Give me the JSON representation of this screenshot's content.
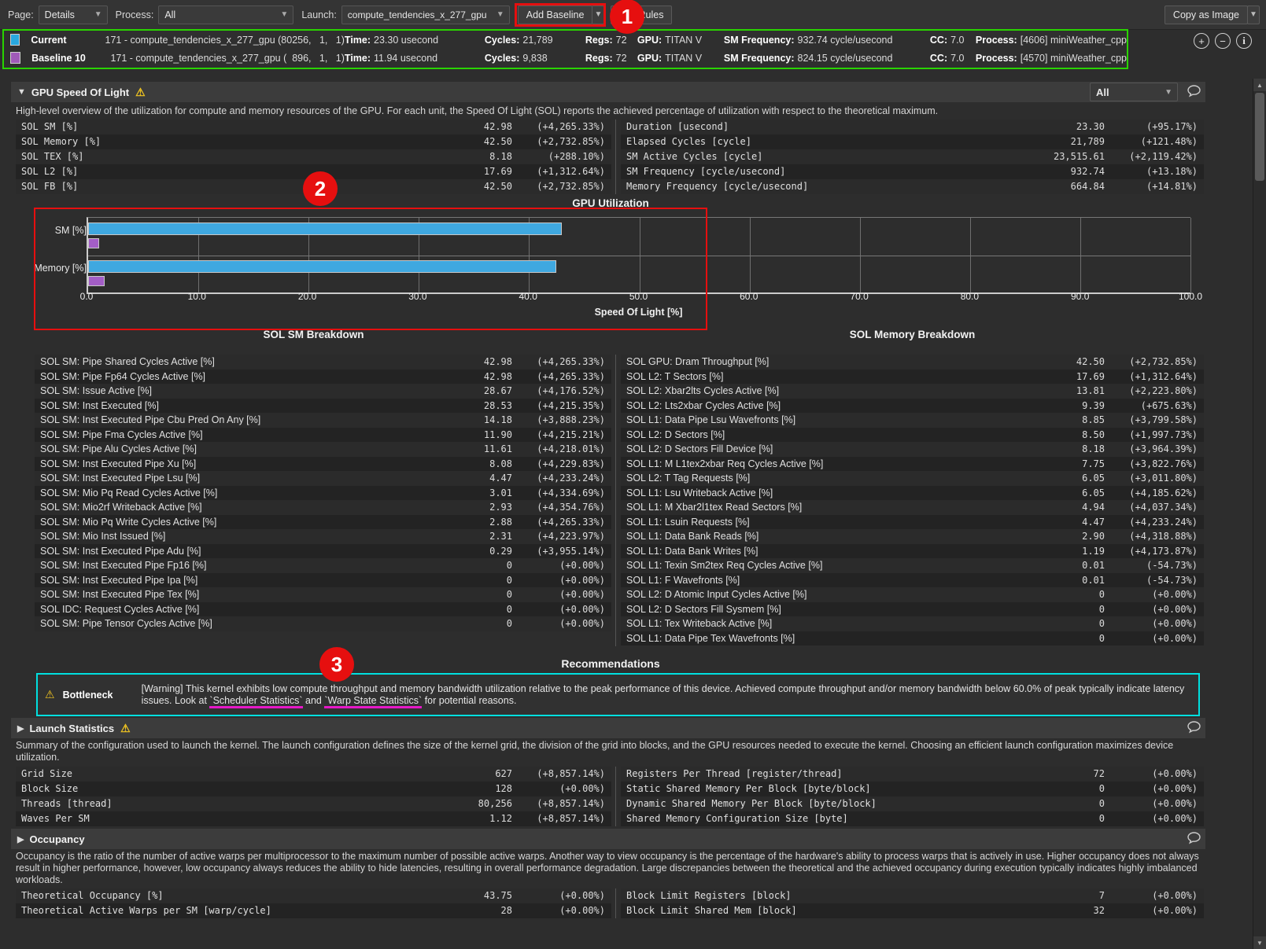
{
  "toolbar": {
    "page_label": "Page:",
    "page_value": "Details",
    "process_label": "Process:",
    "process_value": "All",
    "launch_label": "Launch:",
    "launch_value": "compute_tendencies_x_277_gpu",
    "add_baseline_label": "Add Baseline",
    "rules_label": "Rules",
    "copy_as_image_label": "Copy as Image"
  },
  "baselines": {
    "rows": [
      {
        "name": "Current",
        "swatch_color": "#29a8e0",
        "kernel": "171 - compute_tendencies_x_277_gpu (80256,   1,   1)",
        "fields": [
          {
            "label": "Time:",
            "value": "23.30 usecond"
          },
          {
            "label": "Cycles:",
            "value": "21,789"
          },
          {
            "label": "Regs:",
            "value": "72"
          },
          {
            "label": "GPU:",
            "value": "TITAN V"
          },
          {
            "label": "SM Frequency:",
            "value": "932.74 cycle/usecond"
          },
          {
            "label": "CC:",
            "value": "7.0"
          },
          {
            "label": "Process:",
            "value": "[4606] miniWeather_cpp"
          }
        ]
      },
      {
        "name": "Baseline 10",
        "swatch_color": "#a05ab8",
        "kernel": "171 - compute_tendencies_x_277_gpu (  896,   1,   1)",
        "fields": [
          {
            "label": "Time:",
            "value": "11.94 usecond"
          },
          {
            "label": "Cycles:",
            "value": "9,838"
          },
          {
            "label": "Regs:",
            "value": "72"
          },
          {
            "label": "GPU:",
            "value": "TITAN V"
          },
          {
            "label": "SM Frequency:",
            "value": "824.15 cycle/usecond"
          },
          {
            "label": "CC:",
            "value": "7.0"
          },
          {
            "label": "Process:",
            "value": "[4570] miniWeather_cpp"
          }
        ]
      }
    ]
  },
  "sol_section": {
    "title": "GPU Speed Of Light",
    "filter_value": "All",
    "description": "High-level overview of the utilization for compute and memory resources of the GPU. For each unit, the Speed Of Light (SOL) reports the achieved percentage of utilization with respect to the theoretical maximum.",
    "left_rows": [
      {
        "label": "SOL SM [%]",
        "value": "42.98",
        "delta": "(+4,265.33%)"
      },
      {
        "label": "SOL Memory [%]",
        "value": "42.50",
        "delta": "(+2,732.85%)"
      },
      {
        "label": "SOL TEX [%]",
        "value": "8.18",
        "delta": "(+288.10%)"
      },
      {
        "label": "SOL L2 [%]",
        "value": "17.69",
        "delta": "(+1,312.64%)"
      },
      {
        "label": "SOL FB [%]",
        "value": "42.50",
        "delta": "(+2,732.85%)"
      }
    ],
    "right_rows": [
      {
        "label": "Duration [usecond]",
        "value": "23.30",
        "delta": "(+95.17%)"
      },
      {
        "label": "Elapsed Cycles [cycle]",
        "value": "21,789",
        "delta": "(+121.48%)"
      },
      {
        "label": "SM Active Cycles [cycle]",
        "value": "23,515.61",
        "delta": "(+2,119.42%)"
      },
      {
        "label": "SM Frequency [cycle/usecond]",
        "value": "932.74",
        "delta": "(+13.18%)"
      },
      {
        "label": "Memory Frequency [cycle/usecond]",
        "value": "664.84",
        "delta": "(+14.81%)"
      }
    ]
  },
  "chart_data": {
    "type": "bar",
    "orientation": "horizontal",
    "title": "GPU Utilization",
    "categories": [
      "SM [%]",
      "Memory [%]"
    ],
    "series": [
      {
        "name": "Current",
        "color": "#3fa8e0",
        "values": [
          42.98,
          42.5
        ]
      },
      {
        "name": "Baseline 10",
        "color": "#a35ec6",
        "values": [
          0.98,
          1.5
        ]
      }
    ],
    "xlabel": "Speed Of Light [%]",
    "xlim": [
      0,
      100
    ],
    "xticks": [
      "0.0",
      "10.0",
      "20.0",
      "30.0",
      "40.0",
      "50.0",
      "60.0",
      "70.0",
      "80.0",
      "90.0",
      "100.0"
    ],
    "grid": true,
    "legend_position": "none"
  },
  "breakdown": {
    "left_title": "SOL SM Breakdown",
    "right_title": "SOL Memory Breakdown",
    "left_rows": [
      {
        "label": "SOL SM: Pipe Shared Cycles Active [%]",
        "value": "42.98",
        "delta": "(+4,265.33%)"
      },
      {
        "label": "SOL SM: Pipe Fp64 Cycles Active [%]",
        "value": "42.98",
        "delta": "(+4,265.33%)"
      },
      {
        "label": "SOL SM: Issue Active [%]",
        "value": "28.67",
        "delta": "(+4,176.52%)"
      },
      {
        "label": "SOL SM: Inst Executed [%]",
        "value": "28.53",
        "delta": "(+4,215.35%)"
      },
      {
        "label": "SOL SM: Inst Executed Pipe Cbu Pred On Any [%]",
        "value": "14.18",
        "delta": "(+3,888.23%)"
      },
      {
        "label": "SOL SM: Pipe Fma Cycles Active [%]",
        "value": "11.90",
        "delta": "(+4,215.21%)"
      },
      {
        "label": "SOL SM: Pipe Alu Cycles Active [%]",
        "value": "11.61",
        "delta": "(+4,218.01%)"
      },
      {
        "label": "SOL SM: Inst Executed Pipe Xu [%]",
        "value": "8.08",
        "delta": "(+4,229.83%)"
      },
      {
        "label": "SOL SM: Inst Executed Pipe Lsu [%]",
        "value": "4.47",
        "delta": "(+4,233.24%)"
      },
      {
        "label": "SOL SM: Mio Pq Read Cycles Active [%]",
        "value": "3.01",
        "delta": "(+4,334.69%)"
      },
      {
        "label": "SOL SM: Mio2rf Writeback Active [%]",
        "value": "2.93",
        "delta": "(+4,354.76%)"
      },
      {
        "label": "SOL SM: Mio Pq Write Cycles Active [%]",
        "value": "2.88",
        "delta": "(+4,265.33%)"
      },
      {
        "label": "SOL SM: Mio Inst Issued [%]",
        "value": "2.31",
        "delta": "(+4,223.97%)"
      },
      {
        "label": "SOL SM: Inst Executed Pipe Adu [%]",
        "value": "0.29",
        "delta": "(+3,955.14%)"
      },
      {
        "label": "SOL SM: Inst Executed Pipe Fp16 [%]",
        "value": "0",
        "delta": "(+0.00%)"
      },
      {
        "label": "SOL SM: Inst Executed Pipe Ipa [%]",
        "value": "0",
        "delta": "(+0.00%)"
      },
      {
        "label": "SOL SM: Inst Executed Pipe Tex [%]",
        "value": "0",
        "delta": "(+0.00%)"
      },
      {
        "label": "SOL IDC: Request Cycles Active [%]",
        "value": "0",
        "delta": "(+0.00%)"
      },
      {
        "label": "SOL SM: Pipe Tensor Cycles Active [%]",
        "value": "0",
        "delta": "(+0.00%)"
      }
    ],
    "right_rows": [
      {
        "label": "SOL GPU: Dram Throughput [%]",
        "value": "42.50",
        "delta": "(+2,732.85%)"
      },
      {
        "label": "SOL L2: T Sectors [%]",
        "value": "17.69",
        "delta": "(+1,312.64%)"
      },
      {
        "label": "SOL L2: Xbar2lts Cycles Active [%]",
        "value": "13.81",
        "delta": "(+2,223.80%)"
      },
      {
        "label": "SOL L2: Lts2xbar Cycles Active [%]",
        "value": "9.39",
        "delta": "(+675.63%)"
      },
      {
        "label": "SOL L1: Data Pipe Lsu Wavefronts [%]",
        "value": "8.85",
        "delta": "(+3,799.58%)"
      },
      {
        "label": "SOL L2: D Sectors [%]",
        "value": "8.50",
        "delta": "(+1,997.73%)"
      },
      {
        "label": "SOL L2: D Sectors Fill Device [%]",
        "value": "8.18",
        "delta": "(+3,964.39%)"
      },
      {
        "label": "SOL L1: M L1tex2xbar Req Cycles Active [%]",
        "value": "7.75",
        "delta": "(+3,822.76%)"
      },
      {
        "label": "SOL L2: T Tag Requests [%]",
        "value": "6.05",
        "delta": "(+3,011.80%)"
      },
      {
        "label": "SOL L1: Lsu Writeback Active [%]",
        "value": "6.05",
        "delta": "(+4,185.62%)"
      },
      {
        "label": "SOL L1: M Xbar2l1tex Read Sectors [%]",
        "value": "4.94",
        "delta": "(+4,037.34%)"
      },
      {
        "label": "SOL L1: Lsuin Requests [%]",
        "value": "4.47",
        "delta": "(+4,233.24%)"
      },
      {
        "label": "SOL L1: Data Bank Reads [%]",
        "value": "2.90",
        "delta": "(+4,318.88%)"
      },
      {
        "label": "SOL L1: Data Bank Writes [%]",
        "value": "1.19",
        "delta": "(+4,173.87%)"
      },
      {
        "label": "SOL L1: Texin Sm2tex Req Cycles Active [%]",
        "value": "0.01",
        "delta": "(-54.73%)"
      },
      {
        "label": "SOL L1: F Wavefronts [%]",
        "value": "0.01",
        "delta": "(-54.73%)"
      },
      {
        "label": "SOL L2: D Atomic Input Cycles Active [%]",
        "value": "0",
        "delta": "(+0.00%)"
      },
      {
        "label": "SOL L2: D Sectors Fill Sysmem [%]",
        "value": "0",
        "delta": "(+0.00%)"
      },
      {
        "label": "SOL L1: Tex Writeback Active [%]",
        "value": "0",
        "delta": "(+0.00%)"
      },
      {
        "label": "SOL L1: Data Pipe Tex Wavefronts [%]",
        "value": "0",
        "delta": "(+0.00%)"
      }
    ]
  },
  "recommendations": {
    "title": "Recommendations",
    "rule_name": "Bottleneck",
    "msg_pre": "[Warning] This kernel exhibits low compute throughput and memory bandwidth utilization relative to the peak performance of this device. Achieved compute throughput and/or memory bandwidth below 60.0% of peak typically indicate latency issues. Look at ",
    "link1": "`Scheduler Statistics`",
    "msg_mid": " and ",
    "link2": "`Warp State Statistics`",
    "msg_post": " for potential reasons."
  },
  "launch_section": {
    "title": "Launch Statistics",
    "description": "Summary of the configuration used to launch the kernel. The launch configuration defines the size of the kernel grid, the division of the grid into blocks, and the GPU resources needed to execute the kernel. Choosing an efficient launch configuration maximizes device utilization.",
    "left_rows": [
      {
        "label": "Grid Size",
        "value": "627",
        "delta": "(+8,857.14%)"
      },
      {
        "label": "Block Size",
        "value": "128",
        "delta": "(+0.00%)"
      },
      {
        "label": "Threads [thread]",
        "value": "80,256",
        "delta": "(+8,857.14%)"
      },
      {
        "label": "Waves Per SM",
        "value": "1.12",
        "delta": "(+8,857.14%)"
      }
    ],
    "right_rows": [
      {
        "label": "Registers Per Thread [register/thread]",
        "value": "72",
        "delta": "(+0.00%)"
      },
      {
        "label": "Static Shared Memory Per Block [byte/block]",
        "value": "0",
        "delta": "(+0.00%)"
      },
      {
        "label": "Dynamic Shared Memory Per Block [byte/block]",
        "value": "0",
        "delta": "(+0.00%)"
      },
      {
        "label": "Shared Memory Configuration Size [byte]",
        "value": "0",
        "delta": "(+0.00%)"
      }
    ]
  },
  "occupancy_section": {
    "title": "Occupancy",
    "description": "Occupancy is the ratio of the number of active warps per multiprocessor to the maximum number of possible active warps. Another way to view occupancy is the percentage of the hardware's ability to process warps that is actively in use. Higher occupancy does not always result in higher performance, however, low occupancy always reduces the ability to hide latencies, resulting in overall performance degradation. Large discrepancies between the theoretical and the achieved occupancy during execution typically indicates highly imbalanced workloads.",
    "left_rows": [
      {
        "label": "Theoretical Occupancy [%]",
        "value": "43.75",
        "delta": "(+0.00%)"
      },
      {
        "label": "Theoretical Active Warps per SM [warp/cycle]",
        "value": "28",
        "delta": "(+0.00%)"
      }
    ],
    "right_rows": [
      {
        "label": "Block Limit Registers [block]",
        "value": "7",
        "delta": "(+0.00%)"
      },
      {
        "label": "Block Limit Shared Mem [block]",
        "value": "32",
        "delta": "(+0.00%)"
      }
    ]
  },
  "annotations": {
    "badge1": "1",
    "badge2": "2",
    "badge3": "3",
    "colors": {
      "green": "#29d300",
      "red": "#e60f0f",
      "cyan": "#00dfdf",
      "magenta": "#e619c8"
    }
  }
}
